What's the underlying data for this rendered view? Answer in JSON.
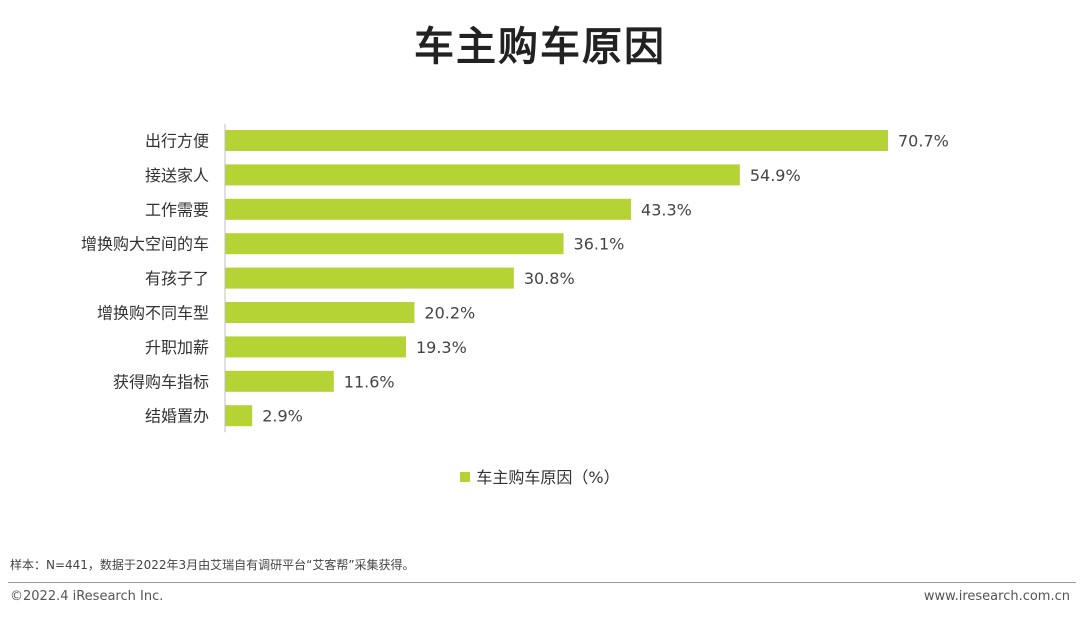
{
  "chart_data": {
    "type": "bar",
    "orientation": "horizontal",
    "title": "车主购车原因",
    "categories": [
      "出行方便",
      "接送家人",
      "工作需要",
      "增换购大空间的车",
      "有孩子了",
      "增换购不同车型",
      "升职加薪",
      "获得购车指标",
      "结婚置办"
    ],
    "series": [
      {
        "name": "车主购车原因（%）",
        "values": [
          70.7,
          54.9,
          43.3,
          36.1,
          30.8,
          20.2,
          19.3,
          11.6,
          2.9
        ],
        "labels": [
          "70.7%",
          "54.9%",
          "43.3%",
          "36.1%",
          "30.8%",
          "20.2%",
          "19.3%",
          "11.6%",
          "2.9%"
        ]
      }
    ],
    "xlim": [
      0,
      70.7
    ],
    "grid": false,
    "legend_position": "bottom-center",
    "bar_color": "#b5d335",
    "axis_color": "#bfbfbf"
  },
  "footer": {
    "note": "样本：N=441，数据于2022年3月由艾瑞自有调研平台“艾客帮”采集获得。",
    "copyright": "©2022.4 iResearch Inc.",
    "website": "www.iresearch.com.cn"
  }
}
